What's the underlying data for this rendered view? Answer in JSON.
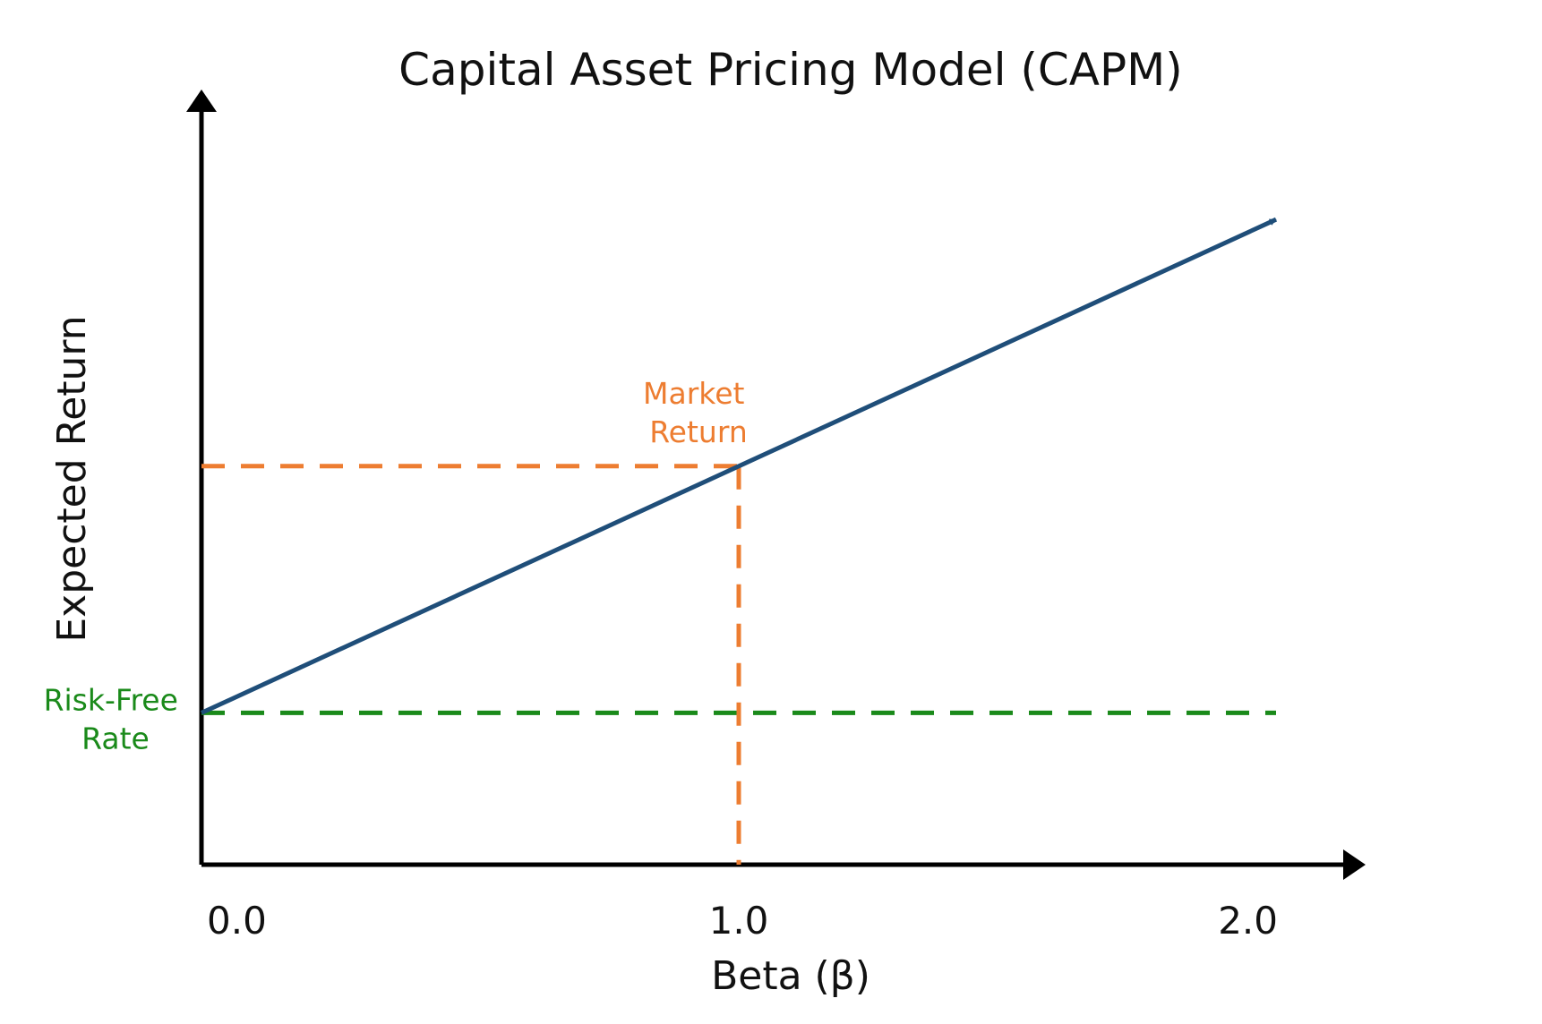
{
  "chart_data": {
    "type": "line",
    "title": "Capital Asset Pricing Model (CAPM)",
    "xlabel": "Beta (β)",
    "ylabel": "Expected Return",
    "x_ticks": [
      0.0,
      1.0,
      2.0
    ],
    "x_tick_labels": [
      "0.0",
      "1.0",
      "2.0"
    ],
    "xlim": [
      0.0,
      2.1
    ],
    "ylim": [
      0.0,
      1.0
    ],
    "grid": false,
    "series": [
      {
        "name": "",
        "x": [
          0.0,
          2.0
        ],
        "y": [
          0.2,
          0.85
        ],
        "color": "#1f4e79"
      }
    ],
    "risk_free": {
      "label_lines": [
        "Risk-Free",
        "Rate"
      ],
      "y": 0.2,
      "x_end": 2.0,
      "color": "#1a8a1a"
    },
    "market": {
      "label_lines": [
        "Market",
        "Return"
      ],
      "x": 1.0,
      "y": 0.525,
      "color": "#ed7d31"
    }
  }
}
